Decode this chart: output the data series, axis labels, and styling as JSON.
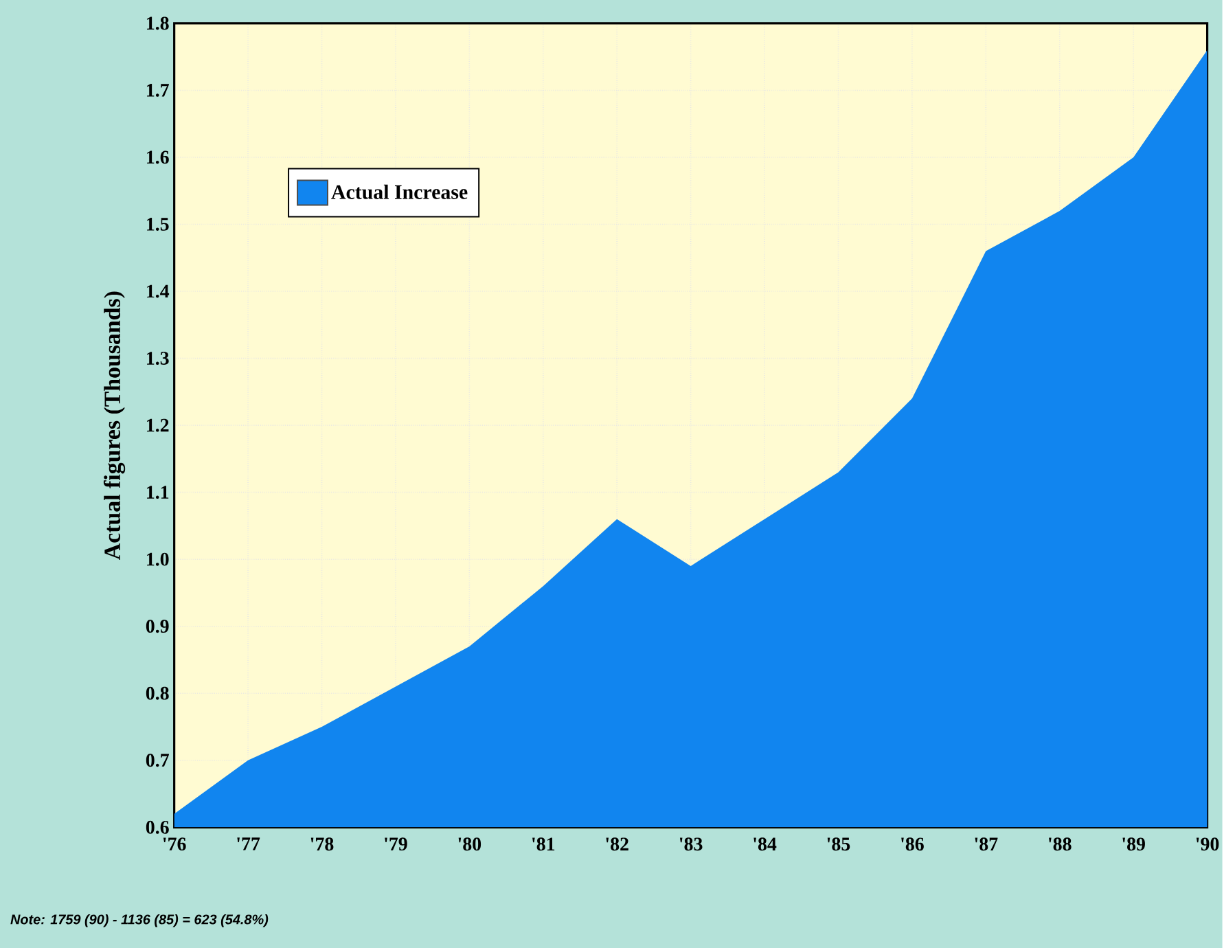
{
  "chart_data": {
    "type": "area",
    "ylabel": "Actual figures (Thousands)",
    "categories": [
      "'76",
      "'77",
      "'78",
      "'79",
      "'80",
      "'81",
      "'82",
      "'83",
      "'84",
      "'85",
      "'86",
      "'87",
      "'88",
      "'89",
      "'90"
    ],
    "series": [
      {
        "name": "Actual Increase",
        "color": "#1185ef",
        "values": [
          0.62,
          0.7,
          0.75,
          0.81,
          0.87,
          0.96,
          1.06,
          0.99,
          1.06,
          1.13,
          1.24,
          1.46,
          1.52,
          1.6,
          1.76
        ]
      }
    ],
    "ylim": [
      0.6,
      1.8
    ],
    "yticks": [
      0.6,
      0.7,
      0.8,
      0.9,
      {
        "value": 1,
        "label": "1.0"
      },
      1.1,
      1.2,
      1.3,
      1.4,
      1.5,
      1.6,
      1.7,
      1.8
    ],
    "grid": true,
    "legend": "top left",
    "annotations": [
      "Note: 1759 (90) - 1136 (85) = 623 (54.8%)"
    ]
  }
}
